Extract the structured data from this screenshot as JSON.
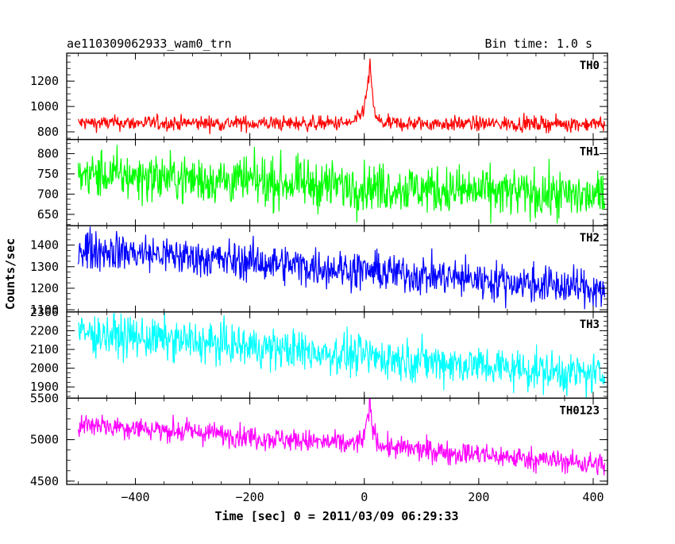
{
  "header": {
    "title": "ae110309062933_wam0_trn",
    "bin_time": "Bin time: 1.0 s"
  },
  "chart_data": {
    "type": "line",
    "xlabel": "Time [sec] 0 = 2011/03/09 06:29:33",
    "ylabel": "Counts/sec",
    "xlim": [
      -520,
      425
    ],
    "x_ticks": [
      -400,
      -200,
      0,
      200,
      400
    ],
    "x_range": [
      -500,
      420
    ],
    "panels": [
      {
        "name": "TH0",
        "color": "#ff0000",
        "ylim": [
          740,
          1420
        ],
        "y_ticks": [
          800,
          1000,
          1200
        ],
        "baseline_start": 870,
        "baseline_end": 862,
        "noise": 30,
        "burst": {
          "peak_time": 10,
          "peak_value": 1400,
          "rise": 8,
          "decay": 5
        }
      },
      {
        "name": "TH1",
        "color": "#00ff00",
        "ylim": [
          622,
          835
        ],
        "y_ticks": [
          650,
          700,
          750,
          800
        ],
        "baseline_start": 750,
        "baseline_end": 693,
        "noise": 30
      },
      {
        "name": "TH2",
        "color": "#0000ff",
        "ylim": [
          1090,
          1490
        ],
        "y_ticks": [
          1100,
          1200,
          1300,
          1400
        ],
        "baseline_start": 1385,
        "baseline_end": 1195,
        "noise": 45
      },
      {
        "name": "TH3",
        "color": "#00ffff",
        "ylim": [
          1840,
          2300
        ],
        "y_ticks": [
          1900,
          2000,
          2100,
          2200,
          2300
        ],
        "baseline_start": 2190,
        "baseline_end": 1960,
        "noise": 55
      },
      {
        "name": "TH0123",
        "color": "#ff00ff",
        "ylim": [
          4460,
          5500
        ],
        "y_ticks": [
          4500,
          5000,
          5500
        ],
        "baseline_start": 5200,
        "baseline_end": 4700,
        "noise": 70,
        "burst": {
          "peak_time": 10,
          "peak_value": 5450,
          "rise": 8,
          "decay": 7
        }
      }
    ]
  }
}
